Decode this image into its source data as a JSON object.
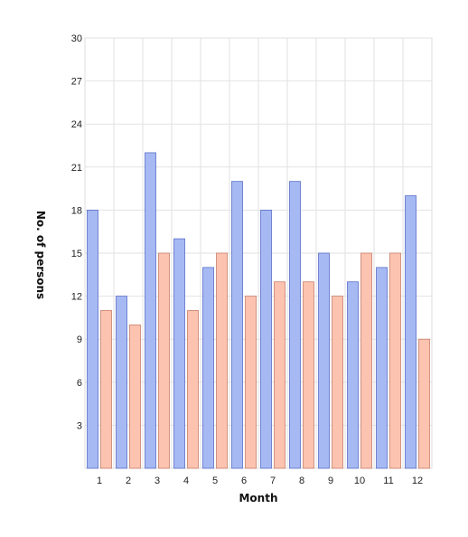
{
  "chart_data": {
    "type": "bar",
    "title": "",
    "xlabel": "Month",
    "ylabel": "No. of persons",
    "categories": [
      "1",
      "2",
      "3",
      "4",
      "5",
      "6",
      "7",
      "8",
      "9",
      "10",
      "11",
      "12"
    ],
    "ylim": [
      0,
      30
    ],
    "yticks": [
      "3",
      "6",
      "9",
      "12",
      "15",
      "18",
      "21",
      "24",
      "27",
      "30"
    ],
    "grid": true,
    "series": [
      {
        "values": [
          18,
          12,
          22,
          16,
          14,
          20,
          18,
          20,
          15,
          13,
          14,
          19
        ],
        "color": "#a6b9f3",
        "stroke": "#5a6fc8"
      },
      {
        "values": [
          11,
          10,
          15,
          11,
          15,
          12,
          13,
          13,
          12,
          15,
          15,
          9
        ],
        "color": "#fcc3b0",
        "stroke": "#c8806a"
      }
    ]
  }
}
